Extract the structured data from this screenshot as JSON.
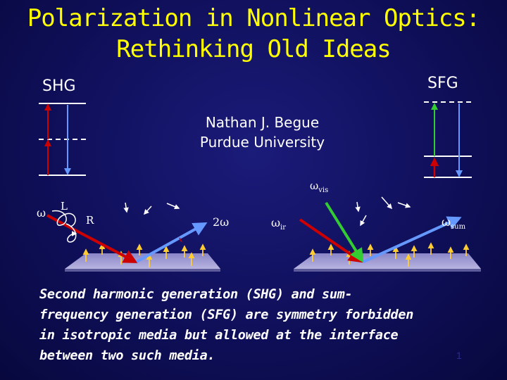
{
  "title": {
    "line1": "Polarization in Nonlinear Optics:",
    "line2": "Rethinking Old Ideas"
  },
  "left_diagram": {
    "label": "SHG"
  },
  "right_diagram": {
    "label": "SFG"
  },
  "author": {
    "name": "Nathan J. Begue",
    "affiliation": "Purdue University"
  },
  "left_scheme": {
    "omega": "ω",
    "L": "L",
    "R": "R",
    "two_omega": "2ω"
  },
  "right_scheme": {
    "omega_vis": "ω",
    "vis_sub": "vis",
    "omega_ir": "ω",
    "ir_sub": "ir",
    "omega_sum": "ω",
    "sum_sub": "sum"
  },
  "body_text": {
    "line1": "Second harmonic generation (SHG) and sum-",
    "line2": "frequency generation (SFG) are symmetry forbidden",
    "line3": "in isotropic media but allowed at the interface",
    "line4": "between two such media."
  },
  "page_number": "1",
  "colors": {
    "title": "#ffff00",
    "background": "#12126a",
    "red_beam": "#cc0000",
    "blue_beam": "#6699ff",
    "green_beam": "#33cc33",
    "molecule": "#ffcc33"
  }
}
